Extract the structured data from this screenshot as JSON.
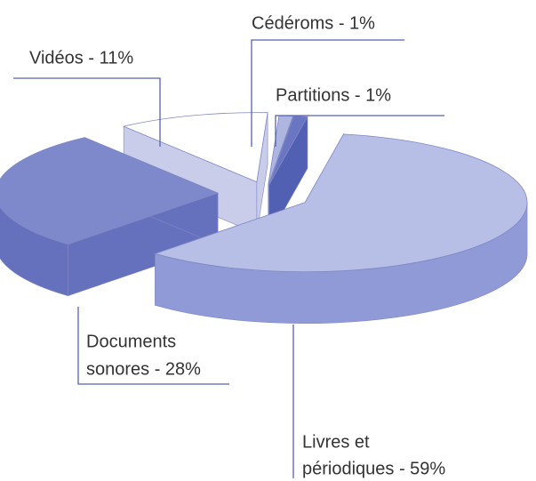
{
  "chart_data": {
    "type": "pie3d",
    "labels": [
      [
        "Livres et",
        "périodiques - 59%"
      ],
      [
        "Documents",
        "sonores - 28%"
      ],
      [
        "Vidéos - 11%"
      ],
      [
        "Cédéroms - 1%"
      ],
      [
        "Partitions - 1%"
      ]
    ],
    "values": [
      59,
      28,
      11,
      1,
      1
    ],
    "colors": [
      "#b7bfe6",
      "#7e89cc",
      "#ffffff",
      "#aeb6e0",
      "#6a76c2"
    ],
    "side_colors": [
      "#8f9ad6",
      "#6571bd",
      "#c9cdea",
      "#8d97d2",
      "#5260b4"
    ]
  }
}
